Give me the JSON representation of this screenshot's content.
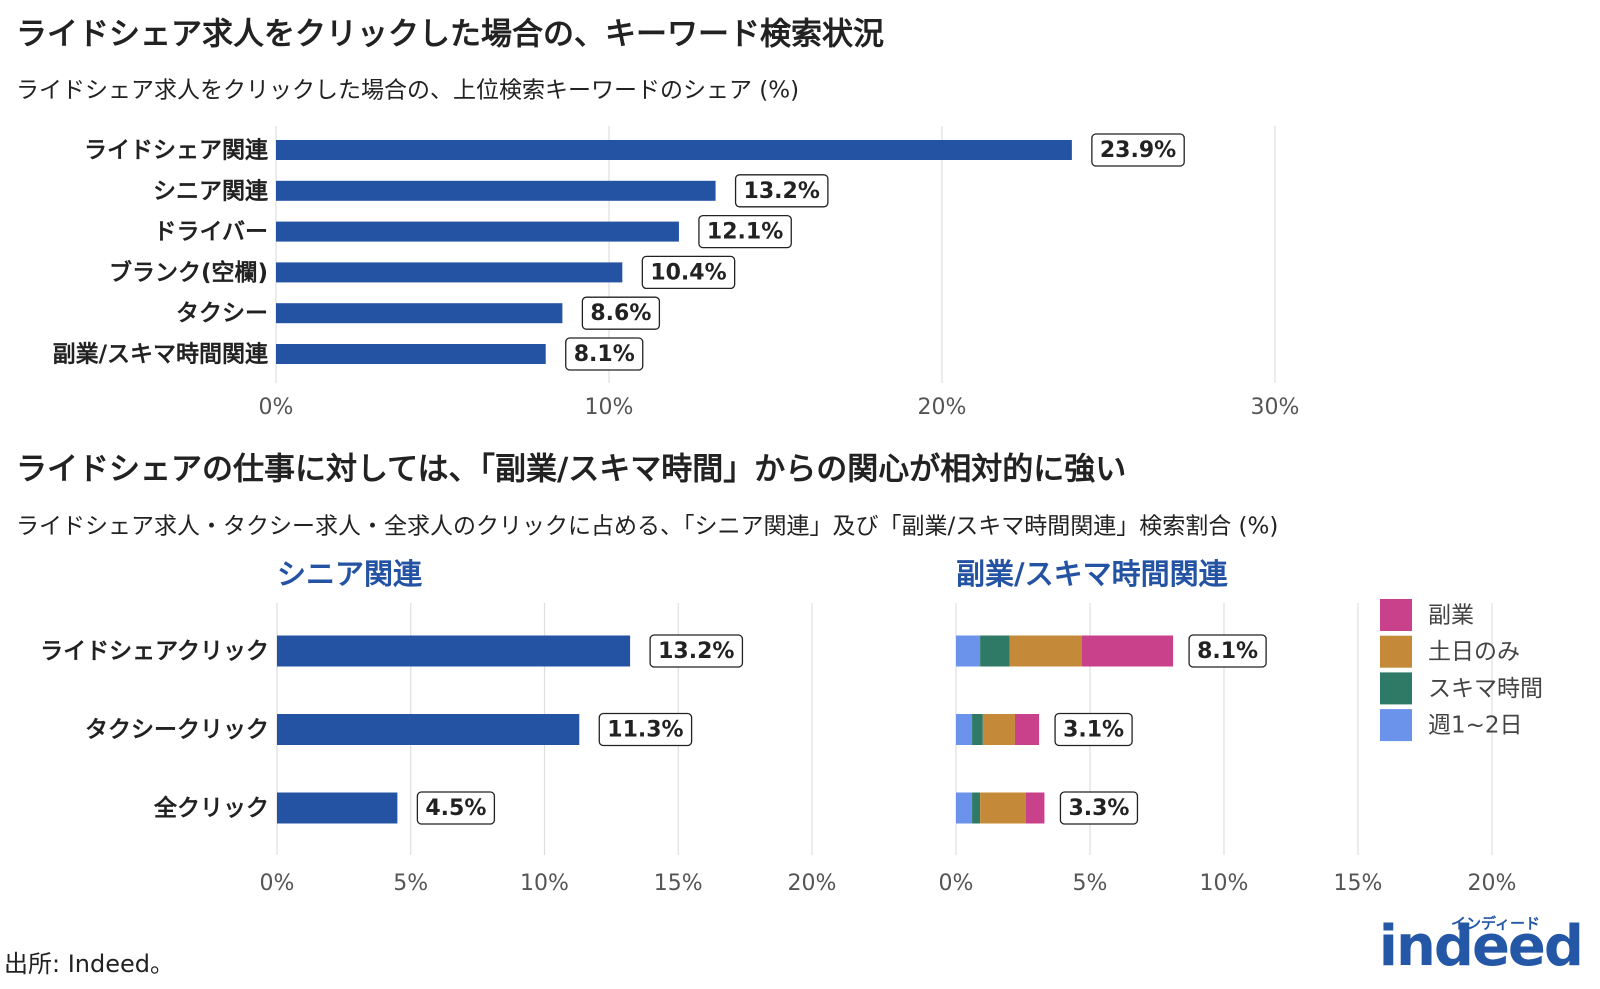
{
  "chart_data": [
    {
      "type": "bar",
      "title": "ライドシェア求人をクリックした場合の、キーワード検索状況",
      "subtitle": "ライドシェア求人をクリックした場合の、上位検索キーワードのシェア (%)",
      "categories": [
        "ライドシェア関連",
        "シニア関連",
        "ドライバー",
        "ブランク(空欄)",
        "タクシー",
        "副業/スキマ時間関連"
      ],
      "values": [
        23.9,
        13.2,
        12.1,
        10.4,
        8.6,
        8.1
      ],
      "value_labels": [
        "23.9%",
        "13.2%",
        "12.1%",
        "10.4%",
        "8.6%",
        "8.1%"
      ],
      "color": "#2553a3",
      "xlim": [
        0,
        30
      ],
      "xticks": [
        {
          "value": 0,
          "label": "0%"
        },
        {
          "value": 10,
          "label": "10%"
        },
        {
          "value": 20,
          "label": "20%"
        },
        {
          "value": 30,
          "label": "30%"
        }
      ],
      "grid": true
    },
    {
      "type": "bar",
      "title": "ライドシェアの仕事に対しては、「副業/スキマ時間」からの関心が相対的に強い",
      "subtitle": "ライドシェア求人・タクシー求人・全求人のクリックに占める、「シニア関連」及び「副業/スキマ時間関連」検索割合 (%)",
      "panel_title": "シニア関連",
      "categories": [
        "ライドシェアクリック",
        "タクシークリック",
        "全クリック"
      ],
      "values": [
        13.2,
        11.3,
        4.5
      ],
      "value_labels": [
        "13.2%",
        "11.3%",
        "4.5%"
      ],
      "color": "#2553a3",
      "xlim": [
        0,
        20
      ],
      "xticks": [
        {
          "value": 0,
          "label": "0%"
        },
        {
          "value": 5,
          "label": "5%"
        },
        {
          "value": 10,
          "label": "10%"
        },
        {
          "value": 15,
          "label": "15%"
        },
        {
          "value": 20,
          "label": "20%"
        }
      ],
      "grid": true
    },
    {
      "type": "stacked_bar",
      "panel_title": "副業/スキマ時間関連",
      "series": [
        {
          "name": "週1~2日",
          "color": "#6b93ec",
          "values": [
            0.9,
            0.6,
            0.6
          ]
        },
        {
          "name": "スキマ時間",
          "color": "#2e7a66",
          "values": [
            1.1,
            0.4,
            0.3
          ]
        },
        {
          "name": "土日のみ",
          "color": "#c48a3a",
          "values": [
            2.7,
            1.2,
            1.7
          ]
        },
        {
          "name": "副業",
          "color": "#c8418a",
          "values": [
            3.4,
            0.9,
            0.7
          ]
        }
      ],
      "totals": [
        8.1,
        3.1,
        3.3
      ],
      "total_labels": [
        "8.1%",
        "3.1%",
        "3.3%"
      ],
      "xlim": [
        0,
        20
      ],
      "xticks": [
        {
          "value": 0,
          "label": "0%"
        },
        {
          "value": 5,
          "label": "5%"
        },
        {
          "value": 10,
          "label": "10%"
        },
        {
          "value": 15,
          "label": "15%"
        },
        {
          "value": 20,
          "label": "20%"
        }
      ],
      "grid": true,
      "legend": "right"
    }
  ],
  "source": "出所: Indeed。",
  "logo": "indeed",
  "logo_kana": "インディード"
}
